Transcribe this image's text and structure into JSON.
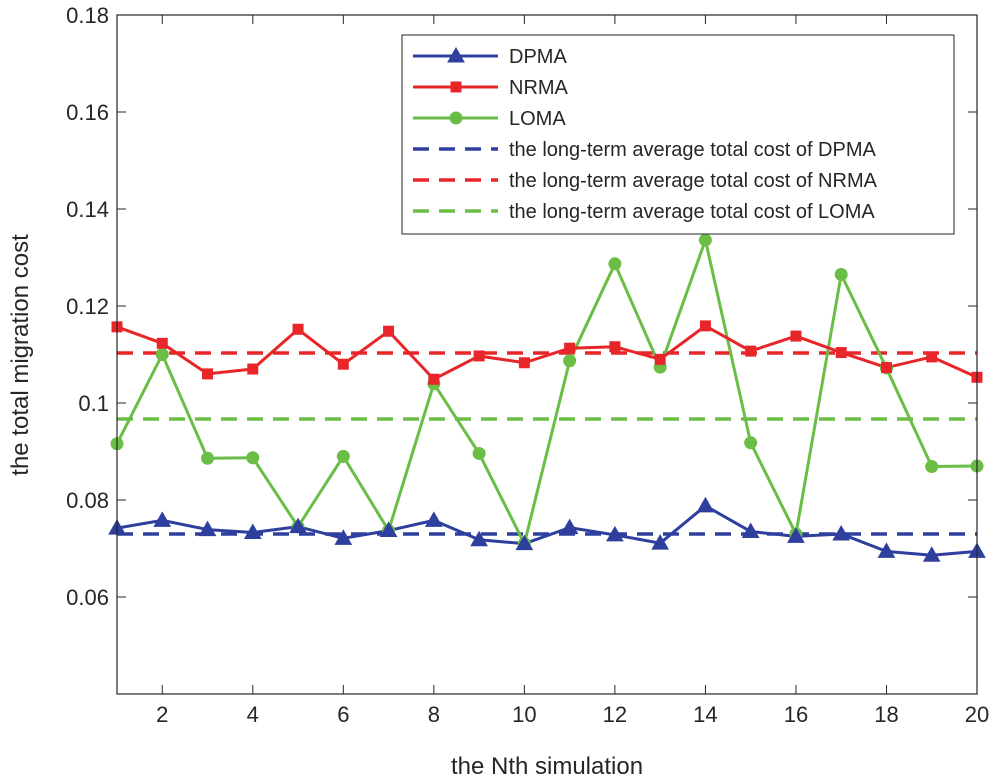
{
  "chart_data": {
    "type": "line",
    "xlabel": "the Nth simulation",
    "ylabel": "the total migration cost",
    "xlim": [
      1,
      20
    ],
    "ylim": [
      0.04,
      0.18
    ],
    "xticks": [
      2,
      4,
      6,
      8,
      10,
      12,
      14,
      16,
      18,
      20
    ],
    "xtick_labels": [
      "2",
      "4",
      "6",
      "8",
      "10",
      "12",
      "14",
      "16",
      "18",
      "20"
    ],
    "yticks": [
      0.06,
      0.08,
      0.1,
      0.12,
      0.14,
      0.16,
      0.18
    ],
    "ytick_labels": [
      "0.06",
      "0.08",
      "0.1",
      "0.12",
      "0.14",
      "0.16",
      "0.18"
    ],
    "x": [
      1,
      2,
      3,
      4,
      5,
      6,
      7,
      8,
      9,
      10,
      11,
      12,
      13,
      14,
      15,
      16,
      17,
      18,
      19,
      20
    ],
    "series": [
      {
        "name": "DPMA",
        "color": "#2e3f9e",
        "marker": "triangle",
        "values": [
          0.0742,
          0.0758,
          0.0739,
          0.0733,
          0.0745,
          0.0721,
          0.0737,
          0.0758,
          0.0718,
          0.071,
          0.0743,
          0.0728,
          0.0711,
          0.0788,
          0.0735,
          0.0725,
          0.073,
          0.0694,
          0.0686,
          0.0694
        ]
      },
      {
        "name": "NRMA",
        "color": "#e8262a",
        "marker": "square",
        "values": [
          0.1157,
          0.1123,
          0.106,
          0.107,
          0.1152,
          0.108,
          0.1148,
          0.1049,
          0.1097,
          0.1083,
          0.1113,
          0.1116,
          0.109,
          0.1159,
          0.1107,
          0.1138,
          0.1104,
          0.1073,
          0.1095,
          0.1053
        ]
      },
      {
        "name": "LOMA",
        "color": "#6abd45",
        "marker": "circle",
        "values": [
          0.0916,
          0.11,
          0.0886,
          0.0887,
          0.0745,
          0.089,
          0.0737,
          0.104,
          0.0896,
          0.071,
          0.1087,
          0.1287,
          0.1074,
          0.1336,
          0.0918,
          0.073,
          0.1265,
          0.1072,
          0.0869,
          0.087
        ]
      }
    ],
    "reference_lines": [
      {
        "name": "the long-term average total cost of DPMA",
        "color": "#2e3f9e",
        "value": 0.073
      },
      {
        "name": "the long-term average total cost of NRMA",
        "color": "#e8262a",
        "value": 0.1103
      },
      {
        "name": "the long-term average total cost of LOMA",
        "color": "#6abd45",
        "value": 0.0967
      }
    ],
    "legend_position": "top-right"
  }
}
